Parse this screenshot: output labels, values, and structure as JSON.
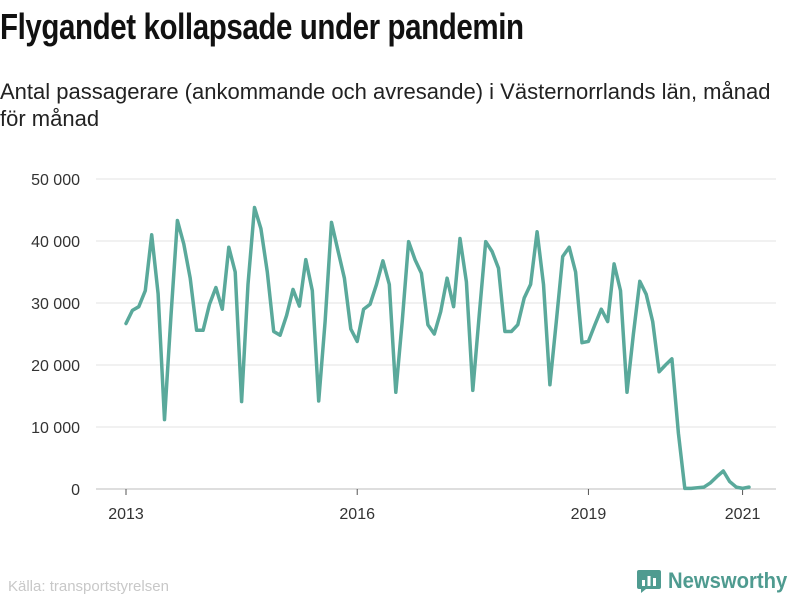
{
  "title": "Flygandet kollapsade under pandemin",
  "subtitle": "Antal passagerare (ankommande och avresande) i Västernorrlands län, månad för månad",
  "source": "Källa: transportstyrelsen",
  "brand": {
    "name": "Newsworthy",
    "icon": "newsworthy-logo-icon",
    "color": "#4f9b90"
  },
  "chart_data": {
    "type": "line",
    "title": "Flygandet kollapsade under pandemin",
    "subtitle": "Antal passagerare (ankommande och avresande) i Västernorrlands län, månad för månad",
    "xlabel": "",
    "ylabel": "",
    "x_start": "2013-01",
    "x_ticks": [
      "2013",
      "2016",
      "2019",
      "2021"
    ],
    "ylim": [
      0,
      50000
    ],
    "y_ticks": [
      0,
      10000,
      20000,
      30000,
      40000,
      50000
    ],
    "y_tick_labels": [
      "0",
      "10 000",
      "20 000",
      "30 000",
      "40 000",
      "50 000"
    ],
    "grid": true,
    "legend": "none",
    "line_color": "#5aa99b",
    "series": [
      {
        "values": [
          26700,
          28800,
          29400,
          32000,
          41000,
          31500,
          11200,
          28000,
          43300,
          39500,
          34000,
          25600,
          25600,
          29800,
          32500,
          29000,
          39000,
          35000,
          14100,
          33000,
          45400,
          42000,
          35000,
          25400,
          24800,
          28000,
          32200,
          29500,
          37000,
          32000,
          14200,
          27000,
          43000,
          38500,
          34000,
          25800,
          23800,
          29000,
          29800,
          33000,
          36800,
          33000,
          15600,
          27000,
          39900,
          37000,
          34800,
          26500,
          25000,
          28600,
          34000,
          29400,
          40400,
          33400,
          15900,
          28000,
          39900,
          38300,
          35600,
          25400,
          25400,
          26500,
          30800,
          33000,
          41500,
          33000,
          16800,
          27000,
          37500,
          39000,
          35000,
          23600,
          23800,
          26500,
          29000,
          27000,
          36300,
          32000,
          15600,
          25000,
          33500,
          31400,
          27000,
          18900,
          20000,
          21000,
          9000,
          100,
          100,
          200,
          300,
          1000,
          2000,
          2900,
          1200,
          300,
          100,
          300
        ]
      }
    ]
  }
}
